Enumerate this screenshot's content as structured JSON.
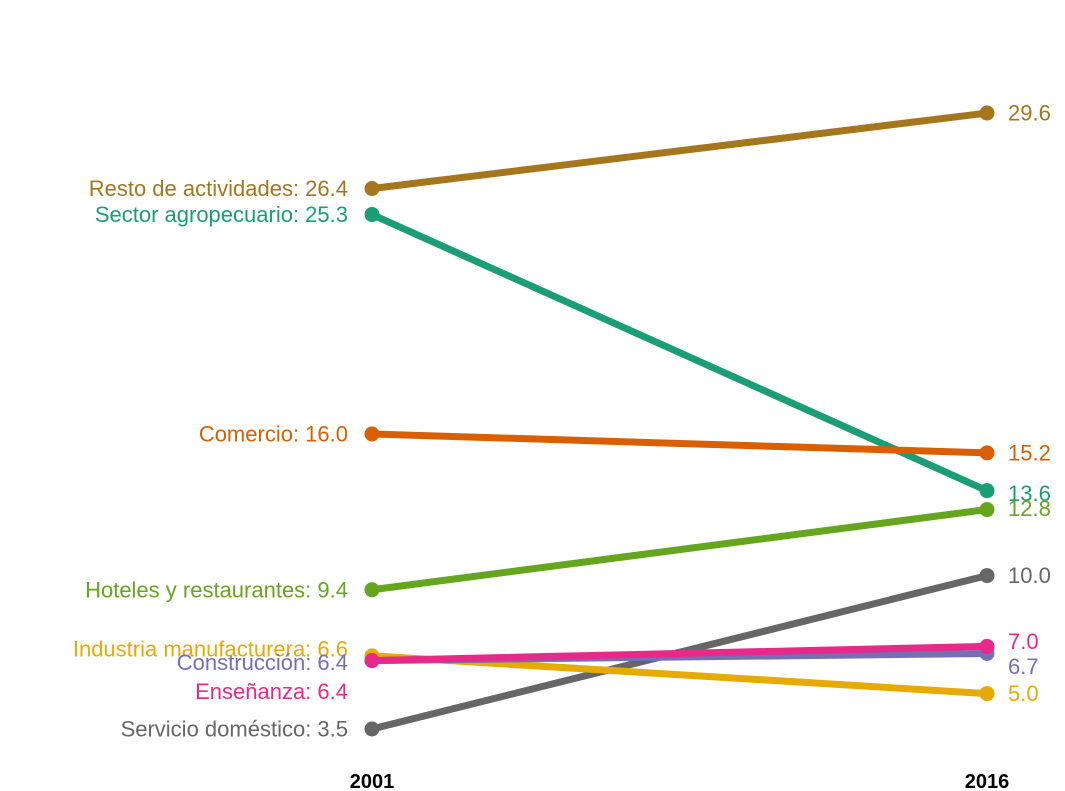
{
  "chart_data": {
    "type": "line",
    "subtype": "slope",
    "x": [
      "2001",
      "2016"
    ],
    "series": [
      {
        "name": "Resto de actividades",
        "values": [
          26.4,
          29.6
        ],
        "labels": [
          "Resto de actividades: 26.4",
          "29.6"
        ],
        "color": "#A6761D"
      },
      {
        "name": "Sector agropecuario",
        "values": [
          25.3,
          13.6
        ],
        "labels": [
          "Sector agropecuario: 25.3",
          "13.6"
        ],
        "color": "#1B9E77"
      },
      {
        "name": "Comercio",
        "values": [
          16.0,
          15.2
        ],
        "labels": [
          "Comercio: 16.0",
          "15.2"
        ],
        "color": "#D95F02"
      },
      {
        "name": "Hoteles y restaurantes",
        "values": [
          9.4,
          12.8
        ],
        "labels": [
          "Hoteles y restaurantes: 9.4",
          "12.8"
        ],
        "color": "#66A61E"
      },
      {
        "name": "Industria manufacturera",
        "values": [
          6.6,
          5.0
        ],
        "labels": [
          "Industria manufacturera: 6.6",
          "5.0"
        ],
        "color": "#E6AB02"
      },
      {
        "name": "Construcción",
        "values": [
          6.4,
          6.7
        ],
        "labels": [
          "Construcción: 6.4",
          "6.7"
        ],
        "color": "#7570B3"
      },
      {
        "name": "Enseñanza",
        "values": [
          6.4,
          7.0
        ],
        "labels": [
          "Enseñanza: 6.4",
          "7.0"
        ],
        "color": "#E7298A"
      },
      {
        "name": "Servicio doméstico",
        "values": [
          3.5,
          10.0
        ],
        "labels": [
          "Servicio doméstico: 3.5",
          "10.0"
        ],
        "color": "#666666"
      }
    ],
    "grid": false,
    "legend": "none"
  }
}
